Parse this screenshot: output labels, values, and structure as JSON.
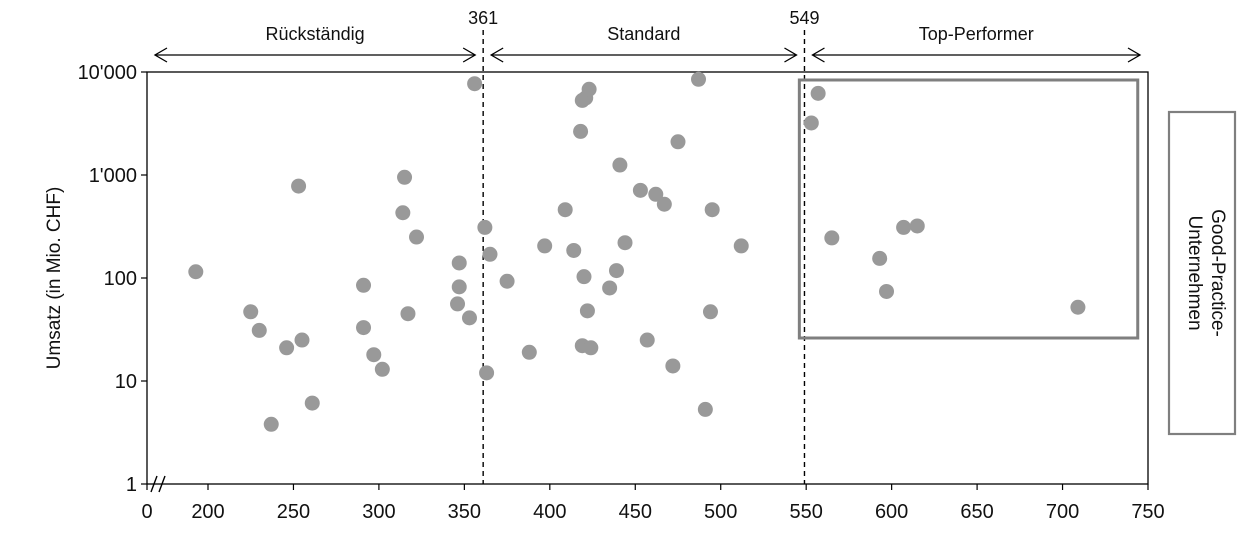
{
  "chart_data": {
    "type": "scatter",
    "title": "",
    "xlabel": "",
    "ylabel": "Umsatz (in Mio. CHF)",
    "y_scale": "log",
    "ylim": [
      1,
      10000
    ],
    "y_ticks": [
      1,
      10,
      100,
      1000,
      10000
    ],
    "y_tick_labels": [
      "1",
      "10",
      "100",
      "1'000",
      "10'000"
    ],
    "x_break": true,
    "x_ticks": [
      0,
      200,
      250,
      300,
      350,
      400,
      450,
      500,
      550,
      600,
      650,
      700,
      750
    ],
    "x_tick_labels": [
      "0",
      "200",
      "250",
      "300",
      "350",
      "400",
      "450",
      "500",
      "550",
      "600",
      "650",
      "700",
      "750"
    ],
    "thresholds": [
      {
        "value": 361,
        "label": "361"
      },
      {
        "value": 549,
        "label": "549"
      }
    ],
    "segments": [
      {
        "label": "Rückständig",
        "from": 0,
        "to": 361
      },
      {
        "label": "Standard",
        "from": 361,
        "to": 549
      },
      {
        "label": "Top-Performer",
        "from": 549,
        "to": 750
      }
    ],
    "good_practice_label": "Good-Practice-Unternehmen",
    "points": [
      {
        "x": 160,
        "y": 115
      },
      {
        "x": 225,
        "y": 47
      },
      {
        "x": 230,
        "y": 31
      },
      {
        "x": 237,
        "y": 3.8
      },
      {
        "x": 246,
        "y": 21
      },
      {
        "x": 253,
        "y": 780
      },
      {
        "x": 255,
        "y": 25
      },
      {
        "x": 261,
        "y": 6.1
      },
      {
        "x": 291,
        "y": 85
      },
      {
        "x": 291,
        "y": 33
      },
      {
        "x": 297,
        "y": 18
      },
      {
        "x": 302,
        "y": 13
      },
      {
        "x": 314,
        "y": 430
      },
      {
        "x": 315,
        "y": 950
      },
      {
        "x": 317,
        "y": 45
      },
      {
        "x": 322,
        "y": 250
      },
      {
        "x": 346,
        "y": 56
      },
      {
        "x": 347,
        "y": 140
      },
      {
        "x": 347,
        "y": 82
      },
      {
        "x": 353,
        "y": 41
      },
      {
        "x": 356,
        "y": 7700
      },
      {
        "x": 362,
        "y": 310
      },
      {
        "x": 363,
        "y": 12
      },
      {
        "x": 365,
        "y": 170
      },
      {
        "x": 375,
        "y": 93
      },
      {
        "x": 388,
        "y": 19
      },
      {
        "x": 397,
        "y": 205
      },
      {
        "x": 409,
        "y": 460
      },
      {
        "x": 414,
        "y": 185
      },
      {
        "x": 418,
        "y": 2650
      },
      {
        "x": 419,
        "y": 5300
      },
      {
        "x": 419,
        "y": 22
      },
      {
        "x": 420,
        "y": 103
      },
      {
        "x": 421,
        "y": 5600
      },
      {
        "x": 422,
        "y": 48
      },
      {
        "x": 423,
        "y": 6800
      },
      {
        "x": 424,
        "y": 21
      },
      {
        "x": 435,
        "y": 80
      },
      {
        "x": 439,
        "y": 118
      },
      {
        "x": 441,
        "y": 1250
      },
      {
        "x": 444,
        "y": 220
      },
      {
        "x": 453,
        "y": 710
      },
      {
        "x": 457,
        "y": 25
      },
      {
        "x": 462,
        "y": 650
      },
      {
        "x": 467,
        "y": 520
      },
      {
        "x": 472,
        "y": 14
      },
      {
        "x": 475,
        "y": 2100
      },
      {
        "x": 487,
        "y": 8500
      },
      {
        "x": 491,
        "y": 5.3
      },
      {
        "x": 494,
        "y": 47
      },
      {
        "x": 495,
        "y": 460
      },
      {
        "x": 512,
        "y": 205
      },
      {
        "x": 553,
        "y": 3200
      },
      {
        "x": 557,
        "y": 6200
      },
      {
        "x": 565,
        "y": 245
      },
      {
        "x": 593,
        "y": 155
      },
      {
        "x": 597,
        "y": 74
      },
      {
        "x": 607,
        "y": 310
      },
      {
        "x": 615,
        "y": 320
      },
      {
        "x": 709,
        "y": 52
      }
    ],
    "colors": {
      "points": "#999999",
      "box": "#7f7f7f"
    },
    "grid": false,
    "legend": "none"
  }
}
